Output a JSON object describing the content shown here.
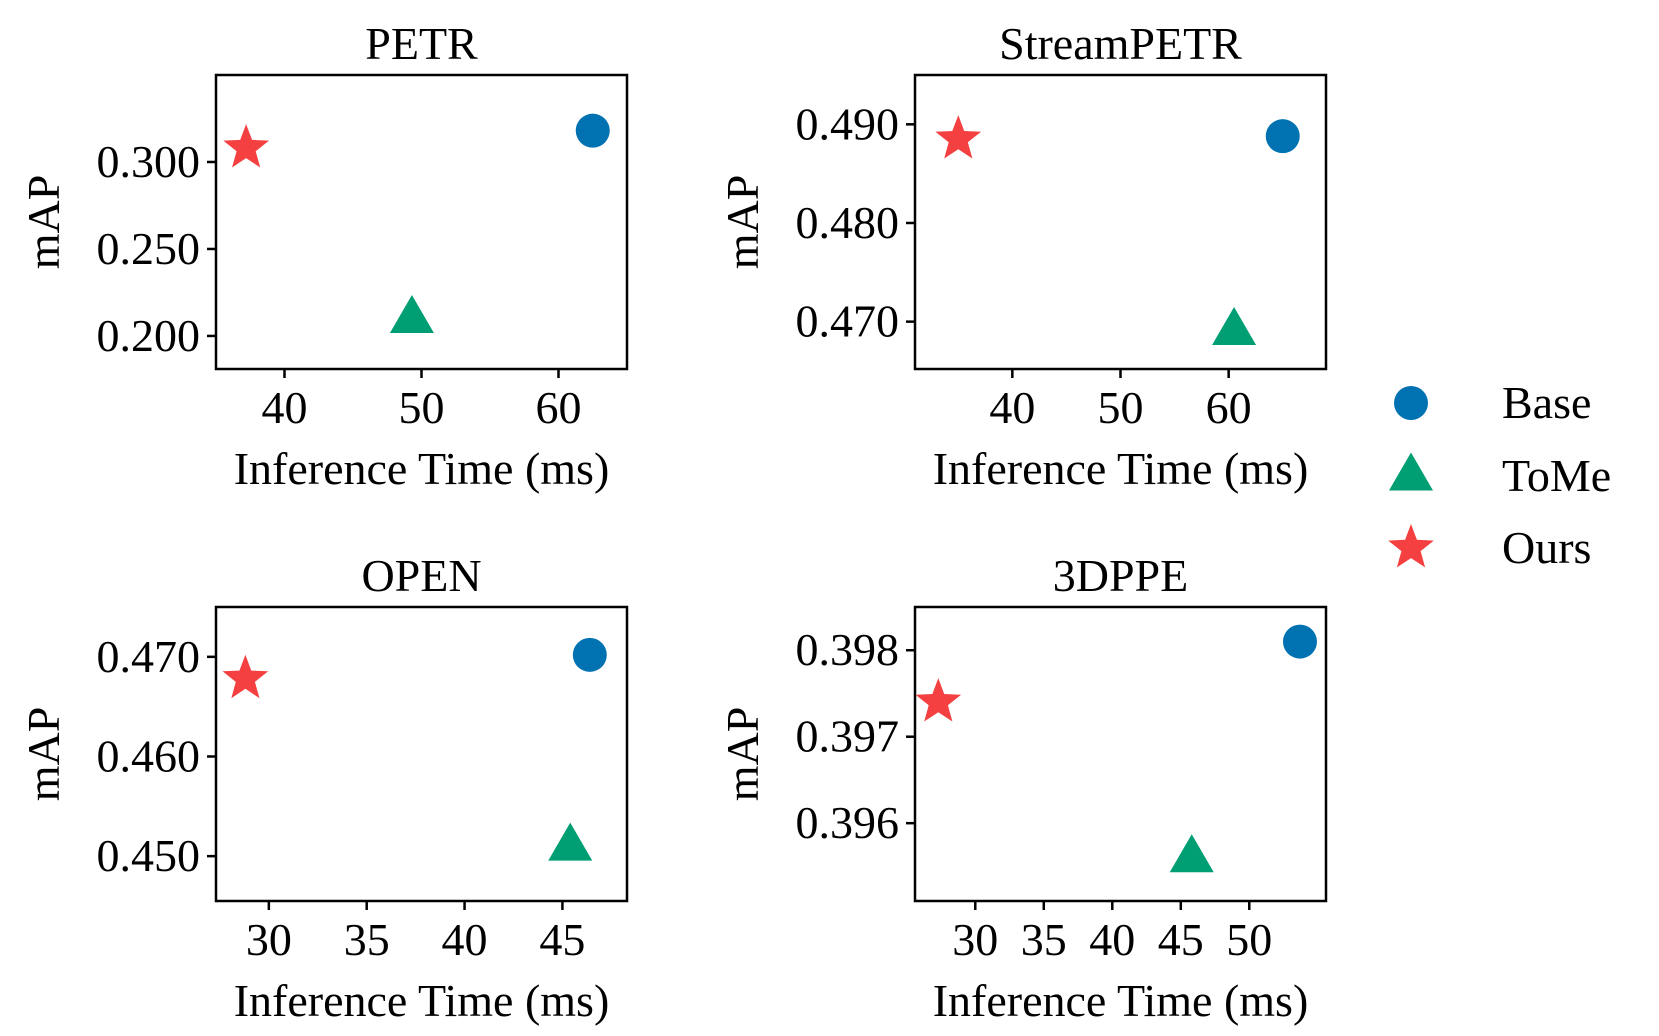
{
  "legend": [
    {
      "name": "Base",
      "marker": "circle",
      "color": "#0072b2"
    },
    {
      "name": "ToMe",
      "marker": "triangle",
      "color": "#009e73"
    },
    {
      "name": "Ours",
      "marker": "star",
      "color": "#f44040"
    }
  ],
  "chart_data": [
    {
      "type": "scatter",
      "title": "PETR",
      "xlabel": "Inference Time (ms)",
      "ylabel": "mAP",
      "xlim": [
        35,
        65
      ],
      "ylim": [
        0.181,
        0.35
      ],
      "xticks": [
        40,
        50,
        60
      ],
      "xtick_labels": [
        "40",
        "50",
        "60"
      ],
      "yticks": [
        0.2,
        0.25,
        0.3
      ],
      "ytick_labels": [
        "0.200",
        "0.250",
        "0.300"
      ],
      "grid": false,
      "series": [
        {
          "name": "Base",
          "x": [
            62.5
          ],
          "y": [
            0.318
          ]
        },
        {
          "name": "ToMe",
          "x": [
            49.3
          ],
          "y": [
            0.21
          ]
        },
        {
          "name": "Ours",
          "x": [
            37.2
          ],
          "y": [
            0.308
          ]
        }
      ]
    },
    {
      "type": "scatter",
      "title": "StreamPETR",
      "xlabel": "Inference Time (ms)",
      "ylabel": "mAP",
      "xlim": [
        31,
        69
      ],
      "ylim": [
        0.4652,
        0.495
      ],
      "xticks": [
        40,
        50,
        60
      ],
      "xtick_labels": [
        "40",
        "50",
        "60"
      ],
      "yticks": [
        0.47,
        0.48,
        0.49
      ],
      "ytick_labels": [
        "0.470",
        "0.480",
        "0.490"
      ],
      "grid": false,
      "series": [
        {
          "name": "Base",
          "x": [
            65
          ],
          "y": [
            0.4888
          ]
        },
        {
          "name": "ToMe",
          "x": [
            60.5
          ],
          "y": [
            0.4691
          ]
        },
        {
          "name": "Ours",
          "x": [
            35
          ],
          "y": [
            0.4885
          ]
        }
      ]
    },
    {
      "type": "scatter",
      "title": "OPEN",
      "xlabel": "Inference Time (ms)",
      "ylabel": "mAP",
      "xlim": [
        27.3,
        48.3
      ],
      "ylim": [
        0.4455,
        0.475
      ],
      "xticks": [
        30,
        35,
        40,
        45
      ],
      "xtick_labels": [
        "30",
        "35",
        "40",
        "45"
      ],
      "yticks": [
        0.45,
        0.46,
        0.47
      ],
      "ytick_labels": [
        "0.450",
        "0.460",
        "0.470"
      ],
      "grid": false,
      "series": [
        {
          "name": "Base",
          "x": [
            46.4
          ],
          "y": [
            0.4702
          ]
        },
        {
          "name": "ToMe",
          "x": [
            45.4
          ],
          "y": [
            0.451
          ]
        },
        {
          "name": "Ours",
          "x": [
            28.8
          ],
          "y": [
            0.4678
          ]
        }
      ]
    },
    {
      "type": "scatter",
      "title": "3DPPE",
      "xlabel": "Inference Time (ms)",
      "ylabel": "mAP",
      "xlim": [
        25.6,
        55.6
      ],
      "ylim": [
        0.3951,
        0.3985
      ],
      "xticks": [
        30,
        35,
        40,
        45,
        50
      ],
      "xtick_labels": [
        "30",
        "35",
        "40",
        "45",
        "50"
      ],
      "yticks": [
        0.396,
        0.397,
        0.398
      ],
      "ytick_labels": [
        "0.396",
        "0.397",
        "0.398"
      ],
      "grid": false,
      "series": [
        {
          "name": "Base",
          "x": [
            53.7
          ],
          "y": [
            0.3981
          ]
        },
        {
          "name": "ToMe",
          "x": [
            45.8
          ],
          "y": [
            0.3956
          ]
        },
        {
          "name": "Ours",
          "x": [
            27.3
          ],
          "y": [
            0.3974
          ]
        }
      ]
    }
  ]
}
